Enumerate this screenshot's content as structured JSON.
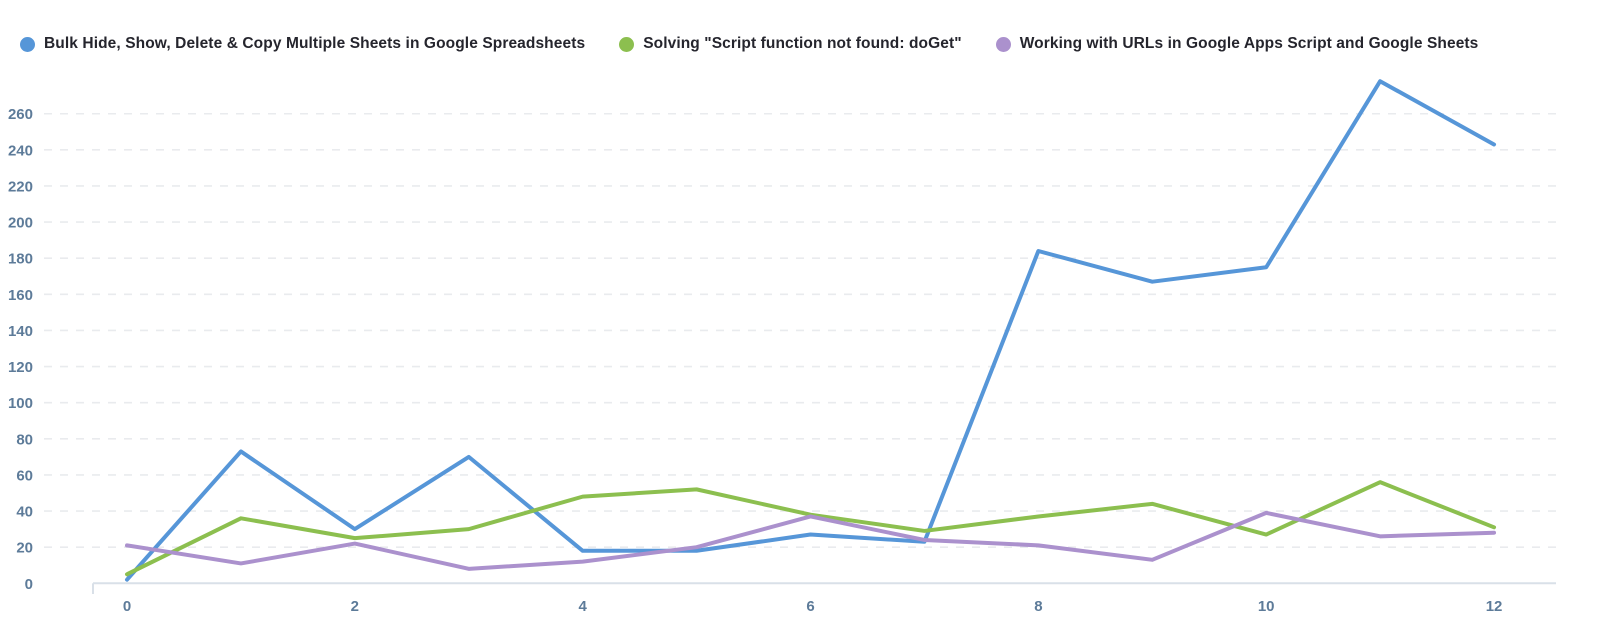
{
  "chart_data": {
    "type": "line",
    "title": "",
    "xlabel": "",
    "ylabel": "",
    "x": [
      0,
      1,
      2,
      3,
      4,
      5,
      6,
      7,
      8,
      9,
      10,
      11,
      12
    ],
    "x_ticks": [
      0,
      2,
      4,
      6,
      8,
      10,
      12
    ],
    "y_ticks": [
      0,
      20,
      40,
      60,
      80,
      100,
      120,
      140,
      160,
      180,
      200,
      220,
      240,
      260
    ],
    "ylim": [
      0,
      285
    ],
    "grid": "horizontal-dashed",
    "legend_position": "top-left",
    "series": [
      {
        "name": "Bulk Hide, Show, Delete & Copy Multiple Sheets in Google Spreadsheets",
        "color": "#5696d8",
        "values": [
          2,
          73,
          30,
          70,
          18,
          18,
          27,
          23,
          184,
          167,
          175,
          278,
          243
        ]
      },
      {
        "name": "Solving \"Script function not found: doGet\"",
        "color": "#8cbf4f",
        "values": [
          5,
          36,
          25,
          30,
          48,
          52,
          38,
          29,
          37,
          44,
          27,
          56,
          31
        ]
      },
      {
        "name": "Working with URLs in Google Apps Script and Google Sheets",
        "color": "#ab91cd",
        "values": [
          21,
          11,
          22,
          8,
          12,
          20,
          37,
          24,
          21,
          13,
          39,
          26,
          28
        ]
      }
    ]
  }
}
